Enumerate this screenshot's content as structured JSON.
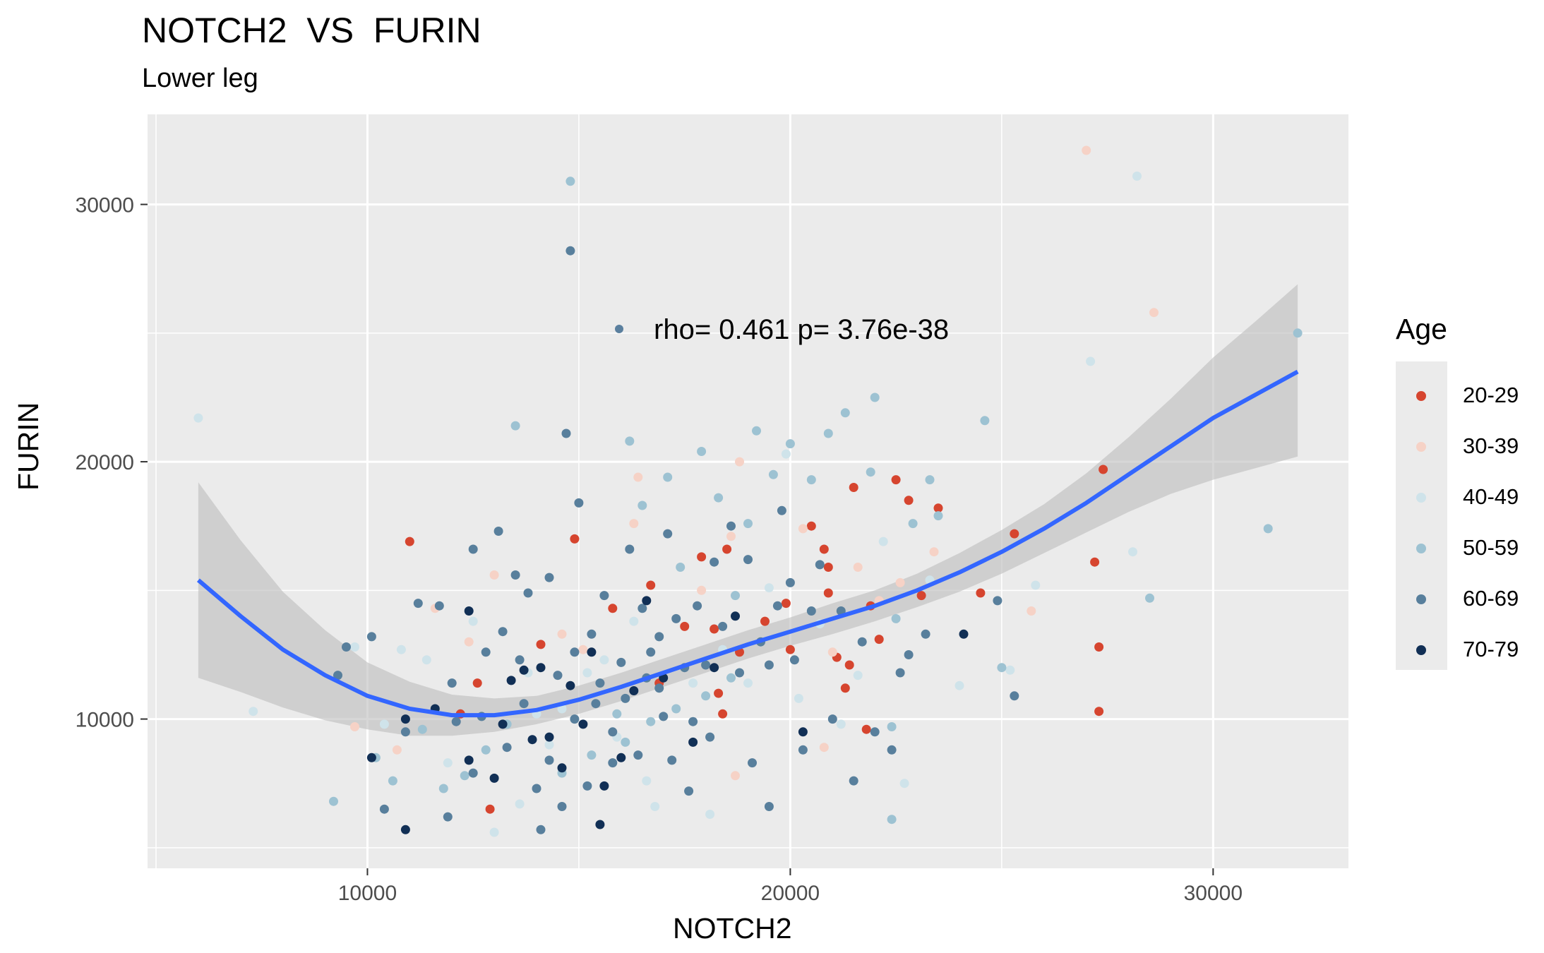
{
  "title": "NOTCH2  VS  FURIN",
  "subtitle": "Lower leg",
  "annotation": "rho= 0.461  p= 3.76e-38",
  "legend_title": "Age",
  "colors": {
    "panel": "#ebebeb",
    "grid": "#ffffff",
    "smooth_line": "#3366ff",
    "ribbon": "#bdbdbd",
    "annotation_dot": "#5a7f9e"
  },
  "chart_data": {
    "type": "scatter",
    "xlabel": "NOTCH2",
    "ylabel": "FURIN",
    "xlim": [
      4800,
      33200
    ],
    "ylim": [
      4200,
      33500
    ],
    "xticks": [
      10000,
      20000,
      30000
    ],
    "yticks": [
      10000,
      20000,
      30000
    ],
    "grid": true,
    "legend_position": "right",
    "age_groups": [
      {
        "label": "20-29",
        "color": "#d6452f"
      },
      {
        "label": "30-39",
        "color": "#f6d2c6"
      },
      {
        "label": "40-49",
        "color": "#cfe3ea"
      },
      {
        "label": "50-59",
        "color": "#9dc2d2"
      },
      {
        "label": "60-69",
        "color": "#587f9c"
      },
      {
        "label": "70-79",
        "color": "#112f55"
      }
    ],
    "points": [
      [
        11000,
        16900,
        0
      ],
      [
        14900,
        17000,
        0
      ],
      [
        16700,
        15200,
        0
      ],
      [
        17900,
        16300,
        0
      ],
      [
        18200,
        13500,
        0
      ],
      [
        18300,
        11000,
        0
      ],
      [
        18400,
        10200,
        0
      ],
      [
        18800,
        12600,
        0
      ],
      [
        19400,
        13800,
        0
      ],
      [
        19900,
        14500,
        0
      ],
      [
        20000,
        12700,
        0
      ],
      [
        20500,
        17500,
        0
      ],
      [
        20800,
        16600,
        0
      ],
      [
        20900,
        15900,
        0
      ],
      [
        20900,
        14900,
        0
      ],
      [
        21100,
        12400,
        0
      ],
      [
        21300,
        11200,
        0
      ],
      [
        21400,
        12100,
        0
      ],
      [
        21500,
        19000,
        0
      ],
      [
        21800,
        9600,
        0
      ],
      [
        21900,
        14400,
        0
      ],
      [
        22100,
        13100,
        0
      ],
      [
        22500,
        19300,
        0
      ],
      [
        22800,
        18500,
        0
      ],
      [
        23100,
        14800,
        0
      ],
      [
        23500,
        18200,
        0
      ],
      [
        24500,
        14900,
        0
      ],
      [
        25300,
        17200,
        0
      ],
      [
        27200,
        16100,
        0
      ],
      [
        27300,
        12800,
        0
      ],
      [
        27300,
        10300,
        0
      ],
      [
        27400,
        19700,
        0
      ],
      [
        12200,
        10200,
        0
      ],
      [
        12600,
        11400,
        0
      ],
      [
        12900,
        6500,
        0
      ],
      [
        14100,
        12900,
        0
      ],
      [
        15800,
        14300,
        0
      ],
      [
        16900,
        11400,
        0
      ],
      [
        17500,
        13600,
        0
      ],
      [
        18500,
        16600,
        0
      ],
      [
        9700,
        9700,
        1
      ],
      [
        10700,
        8800,
        1
      ],
      [
        13000,
        15600,
        1
      ],
      [
        14600,
        13300,
        1
      ],
      [
        16300,
        17600,
        1
      ],
      [
        16400,
        19400,
        1
      ],
      [
        17900,
        15000,
        1
      ],
      [
        18600,
        17100,
        1
      ],
      [
        18800,
        20000,
        1
      ],
      [
        20300,
        17400,
        1
      ],
      [
        21000,
        12600,
        1
      ],
      [
        21600,
        15900,
        1
      ],
      [
        22100,
        14600,
        1
      ],
      [
        22600,
        15300,
        1
      ],
      [
        23400,
        16500,
        1
      ],
      [
        25700,
        14200,
        1
      ],
      [
        27000,
        32100,
        1
      ],
      [
        28600,
        25800,
        1
      ],
      [
        20800,
        8900,
        1
      ],
      [
        18700,
        7800,
        1
      ],
      [
        15100,
        12700,
        1
      ],
      [
        12400,
        13000,
        1
      ],
      [
        11600,
        14300,
        1
      ],
      [
        6000,
        21700,
        2
      ],
      [
        7300,
        10300,
        2
      ],
      [
        9700,
        12800,
        2
      ],
      [
        10400,
        9800,
        2
      ],
      [
        10800,
        12700,
        2
      ],
      [
        11400,
        12300,
        2
      ],
      [
        12500,
        13800,
        2
      ],
      [
        13800,
        11800,
        2
      ],
      [
        14000,
        10200,
        2
      ],
      [
        14300,
        9000,
        2
      ],
      [
        14600,
        10400,
        2
      ],
      [
        15200,
        11800,
        2
      ],
      [
        15600,
        12300,
        2
      ],
      [
        16300,
        13800,
        2
      ],
      [
        16800,
        6600,
        2
      ],
      [
        17700,
        11400,
        2
      ],
      [
        18100,
        6300,
        2
      ],
      [
        18400,
        12700,
        2
      ],
      [
        19000,
        11400,
        2
      ],
      [
        19500,
        15100,
        2
      ],
      [
        19900,
        20300,
        2
      ],
      [
        20200,
        10800,
        2
      ],
      [
        20700,
        13700,
        2
      ],
      [
        21200,
        9800,
        2
      ],
      [
        21600,
        11700,
        2
      ],
      [
        22200,
        16900,
        2
      ],
      [
        22700,
        7500,
        2
      ],
      [
        23300,
        15400,
        2
      ],
      [
        24000,
        11300,
        2
      ],
      [
        25200,
        11900,
        2
      ],
      [
        25800,
        15200,
        2
      ],
      [
        28100,
        16500,
        2
      ],
      [
        28200,
        31100,
        2
      ],
      [
        27100,
        23900,
        2
      ],
      [
        13000,
        5600,
        2
      ],
      [
        13600,
        6700,
        2
      ],
      [
        11900,
        8300,
        2
      ],
      [
        15900,
        9300,
        2
      ],
      [
        16600,
        7600,
        2
      ],
      [
        9200,
        6800,
        3
      ],
      [
        10600,
        7600,
        3
      ],
      [
        11800,
        7300,
        3
      ],
      [
        12800,
        8800,
        3
      ],
      [
        13500,
        21400,
        3
      ],
      [
        14800,
        30900,
        3
      ],
      [
        15900,
        10200,
        3
      ],
      [
        16200,
        20800,
        3
      ],
      [
        16500,
        18300,
        3
      ],
      [
        17100,
        19400,
        3
      ],
      [
        17400,
        15900,
        3
      ],
      [
        17900,
        20400,
        3
      ],
      [
        18300,
        18600,
        3
      ],
      [
        18700,
        14800,
        3
      ],
      [
        19000,
        17600,
        3
      ],
      [
        19200,
        21200,
        3
      ],
      [
        19600,
        19500,
        3
      ],
      [
        20000,
        20700,
        3
      ],
      [
        20500,
        19300,
        3
      ],
      [
        20900,
        21100,
        3
      ],
      [
        21300,
        21900,
        3
      ],
      [
        21900,
        19600,
        3
      ],
      [
        22000,
        22500,
        3
      ],
      [
        22400,
        9700,
        3
      ],
      [
        22500,
        13900,
        3
      ],
      [
        22900,
        17600,
        3
      ],
      [
        23300,
        19300,
        3
      ],
      [
        23500,
        17900,
        3
      ],
      [
        24600,
        21600,
        3
      ],
      [
        25000,
        12000,
        3
      ],
      [
        28500,
        14700,
        3
      ],
      [
        31300,
        17400,
        3
      ],
      [
        32000,
        25000,
        3
      ],
      [
        10200,
        8500,
        3
      ],
      [
        11300,
        9600,
        3
      ],
      [
        12300,
        7800,
        3
      ],
      [
        13300,
        9800,
        3
      ],
      [
        14600,
        7900,
        3
      ],
      [
        15300,
        8600,
        3
      ],
      [
        16100,
        9100,
        3
      ],
      [
        16700,
        9900,
        3
      ],
      [
        17300,
        10400,
        3
      ],
      [
        18000,
        10900,
        3
      ],
      [
        18600,
        11600,
        3
      ],
      [
        22400,
        6100,
        3
      ],
      [
        9300,
        11700,
        4
      ],
      [
        9500,
        12800,
        4
      ],
      [
        10100,
        13200,
        4
      ],
      [
        10400,
        6500,
        4
      ],
      [
        11200,
        14500,
        4
      ],
      [
        11700,
        14400,
        4
      ],
      [
        12000,
        11400,
        4
      ],
      [
        12100,
        9900,
        4
      ],
      [
        12500,
        16600,
        4
      ],
      [
        12800,
        12600,
        4
      ],
      [
        13100,
        17300,
        4
      ],
      [
        13200,
        13400,
        4
      ],
      [
        13500,
        15600,
        4
      ],
      [
        13800,
        14900,
        4
      ],
      [
        14000,
        7300,
        4
      ],
      [
        14300,
        15500,
        4
      ],
      [
        14500,
        11700,
        4
      ],
      [
        14700,
        21100,
        4
      ],
      [
        14800,
        28200,
        4
      ],
      [
        15000,
        18400,
        4
      ],
      [
        15300,
        13300,
        4
      ],
      [
        15600,
        14800,
        4
      ],
      [
        15800,
        9500,
        4
      ],
      [
        16000,
        12200,
        4
      ],
      [
        16200,
        16600,
        4
      ],
      [
        16500,
        14300,
        4
      ],
      [
        16700,
        12600,
        4
      ],
      [
        16900,
        11200,
        4
      ],
      [
        17100,
        17200,
        4
      ],
      [
        17300,
        13900,
        4
      ],
      [
        17500,
        12000,
        4
      ],
      [
        17700,
        9900,
        4
      ],
      [
        17800,
        14400,
        4
      ],
      [
        18000,
        12100,
        4
      ],
      [
        18200,
        16100,
        4
      ],
      [
        18400,
        13600,
        4
      ],
      [
        18600,
        17500,
        4
      ],
      [
        18800,
        11800,
        4
      ],
      [
        19000,
        16200,
        4
      ],
      [
        19300,
        13000,
        4
      ],
      [
        19500,
        12100,
        4
      ],
      [
        19700,
        14400,
        4
      ],
      [
        19800,
        18100,
        4
      ],
      [
        20000,
        15300,
        4
      ],
      [
        20100,
        12300,
        4
      ],
      [
        20300,
        8800,
        4
      ],
      [
        20500,
        14200,
        4
      ],
      [
        20700,
        16000,
        4
      ],
      [
        21000,
        10000,
        4
      ],
      [
        21200,
        14200,
        4
      ],
      [
        21500,
        7600,
        4
      ],
      [
        21700,
        13000,
        4
      ],
      [
        22000,
        9500,
        4
      ],
      [
        22400,
        8800,
        4
      ],
      [
        22600,
        11800,
        4
      ],
      [
        22800,
        12500,
        4
      ],
      [
        23200,
        13300,
        4
      ],
      [
        25300,
        10900,
        4
      ],
      [
        24900,
        14600,
        4
      ],
      [
        10900,
        9500,
        4
      ],
      [
        11900,
        6200,
        4
      ],
      [
        12500,
        7900,
        4
      ],
      [
        12700,
        10100,
        4
      ],
      [
        13300,
        8900,
        4
      ],
      [
        13700,
        10600,
        4
      ],
      [
        14100,
        5700,
        4
      ],
      [
        14300,
        8400,
        4
      ],
      [
        14600,
        6600,
        4
      ],
      [
        14900,
        10000,
        4
      ],
      [
        15200,
        7400,
        4
      ],
      [
        15500,
        11400,
        4
      ],
      [
        15800,
        8300,
        4
      ],
      [
        16100,
        10800,
        4
      ],
      [
        16400,
        8600,
        4
      ],
      [
        16600,
        11600,
        4
      ],
      [
        17000,
        10100,
        4
      ],
      [
        17200,
        8400,
        4
      ],
      [
        17600,
        7200,
        4
      ],
      [
        18100,
        9300,
        4
      ],
      [
        19100,
        8300,
        4
      ],
      [
        19500,
        6600,
        4
      ],
      [
        13600,
        12300,
        4
      ],
      [
        14900,
        12600,
        4
      ],
      [
        15400,
        10600,
        4
      ],
      [
        16900,
        13200,
        4
      ],
      [
        10100,
        8500,
        5
      ],
      [
        10900,
        5700,
        5
      ],
      [
        10900,
        10000,
        5
      ],
      [
        12400,
        8400,
        5
      ],
      [
        12400,
        14200,
        5
      ],
      [
        13000,
        7700,
        5
      ],
      [
        13200,
        9800,
        5
      ],
      [
        13400,
        11500,
        5
      ],
      [
        13700,
        11900,
        5
      ],
      [
        14100,
        12000,
        5
      ],
      [
        14300,
        9300,
        5
      ],
      [
        14600,
        8100,
        5
      ],
      [
        14800,
        11300,
        5
      ],
      [
        15100,
        9800,
        5
      ],
      [
        15500,
        5900,
        5
      ],
      [
        15600,
        7400,
        5
      ],
      [
        16000,
        8500,
        5
      ],
      [
        16600,
        14600,
        5
      ],
      [
        17000,
        11600,
        5
      ],
      [
        18200,
        12000,
        5
      ],
      [
        18700,
        14000,
        5
      ],
      [
        20300,
        9500,
        5
      ],
      [
        24100,
        13300,
        5
      ],
      [
        11600,
        10400,
        5
      ],
      [
        13900,
        9200,
        5
      ],
      [
        15300,
        12600,
        5
      ],
      [
        16300,
        11100,
        5
      ],
      [
        17700,
        9100,
        5
      ]
    ],
    "smooth_fit": {
      "x": [
        6000,
        7000,
        8000,
        9000,
        10000,
        11000,
        12000,
        13000,
        14000,
        15000,
        16000,
        17000,
        18000,
        19000,
        20000,
        21000,
        22000,
        23000,
        24000,
        25000,
        26000,
        27000,
        28000,
        29000,
        30000,
        31000,
        32000
      ],
      "y": [
        15400,
        14000,
        12700,
        11700,
        10900,
        10400,
        10150,
        10150,
        10350,
        10750,
        11250,
        11800,
        12350,
        12900,
        13400,
        13900,
        14400,
        15000,
        15700,
        16500,
        17400,
        18400,
        19500,
        20600,
        21700,
        22600,
        23500
      ],
      "ymin": [
        11600,
        11050,
        10450,
        9950,
        9600,
        9350,
        9350,
        9500,
        9800,
        10200,
        10700,
        11250,
        11800,
        12350,
        12850,
        13300,
        13800,
        14350,
        14950,
        15650,
        16450,
        17250,
        18050,
        18750,
        19300,
        19750,
        20200
      ],
      "ymax": [
        19200,
        16950,
        14950,
        13450,
        12200,
        11450,
        10950,
        10800,
        10900,
        11300,
        11800,
        12350,
        12900,
        13450,
        13950,
        14500,
        15000,
        15650,
        16450,
        17350,
        18350,
        19550,
        20950,
        22450,
        24050,
        25450,
        26900
      ]
    }
  }
}
